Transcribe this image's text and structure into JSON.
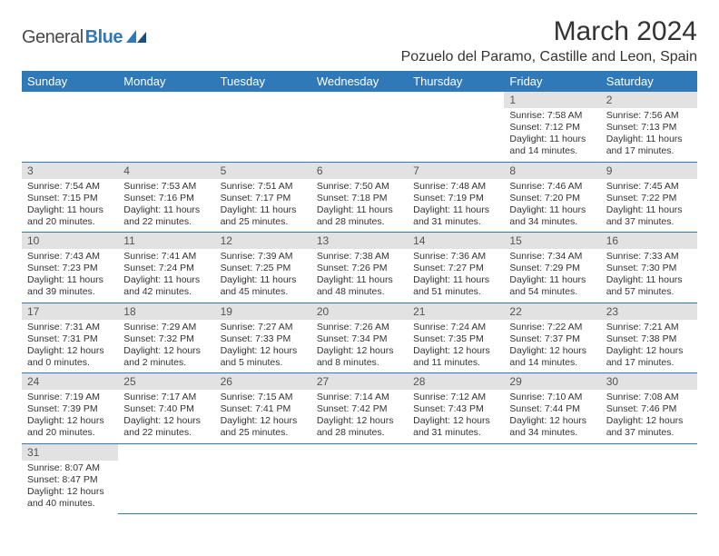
{
  "brand": {
    "part1": "General",
    "part2": "Blue"
  },
  "title": "March 2024",
  "location": "Pozuelo del Paramo, Castille and Leon, Spain",
  "colors": {
    "header_bg": "#2f79b9",
    "header_text": "#ffffff",
    "daynum_bg": "#e2e2e2",
    "row_border": "#2f79b9",
    "text": "#333333"
  },
  "weekdays": [
    "Sunday",
    "Monday",
    "Tuesday",
    "Wednesday",
    "Thursday",
    "Friday",
    "Saturday"
  ],
  "weeks": [
    [
      null,
      null,
      null,
      null,
      null,
      {
        "n": "1",
        "sr": "Sunrise: 7:58 AM",
        "ss": "Sunset: 7:12 PM",
        "d1": "Daylight: 11 hours",
        "d2": "and 14 minutes."
      },
      {
        "n": "2",
        "sr": "Sunrise: 7:56 AM",
        "ss": "Sunset: 7:13 PM",
        "d1": "Daylight: 11 hours",
        "d2": "and 17 minutes."
      }
    ],
    [
      {
        "n": "3",
        "sr": "Sunrise: 7:54 AM",
        "ss": "Sunset: 7:15 PM",
        "d1": "Daylight: 11 hours",
        "d2": "and 20 minutes."
      },
      {
        "n": "4",
        "sr": "Sunrise: 7:53 AM",
        "ss": "Sunset: 7:16 PM",
        "d1": "Daylight: 11 hours",
        "d2": "and 22 minutes."
      },
      {
        "n": "5",
        "sr": "Sunrise: 7:51 AM",
        "ss": "Sunset: 7:17 PM",
        "d1": "Daylight: 11 hours",
        "d2": "and 25 minutes."
      },
      {
        "n": "6",
        "sr": "Sunrise: 7:50 AM",
        "ss": "Sunset: 7:18 PM",
        "d1": "Daylight: 11 hours",
        "d2": "and 28 minutes."
      },
      {
        "n": "7",
        "sr": "Sunrise: 7:48 AM",
        "ss": "Sunset: 7:19 PM",
        "d1": "Daylight: 11 hours",
        "d2": "and 31 minutes."
      },
      {
        "n": "8",
        "sr": "Sunrise: 7:46 AM",
        "ss": "Sunset: 7:20 PM",
        "d1": "Daylight: 11 hours",
        "d2": "and 34 minutes."
      },
      {
        "n": "9",
        "sr": "Sunrise: 7:45 AM",
        "ss": "Sunset: 7:22 PM",
        "d1": "Daylight: 11 hours",
        "d2": "and 37 minutes."
      }
    ],
    [
      {
        "n": "10",
        "sr": "Sunrise: 7:43 AM",
        "ss": "Sunset: 7:23 PM",
        "d1": "Daylight: 11 hours",
        "d2": "and 39 minutes."
      },
      {
        "n": "11",
        "sr": "Sunrise: 7:41 AM",
        "ss": "Sunset: 7:24 PM",
        "d1": "Daylight: 11 hours",
        "d2": "and 42 minutes."
      },
      {
        "n": "12",
        "sr": "Sunrise: 7:39 AM",
        "ss": "Sunset: 7:25 PM",
        "d1": "Daylight: 11 hours",
        "d2": "and 45 minutes."
      },
      {
        "n": "13",
        "sr": "Sunrise: 7:38 AM",
        "ss": "Sunset: 7:26 PM",
        "d1": "Daylight: 11 hours",
        "d2": "and 48 minutes."
      },
      {
        "n": "14",
        "sr": "Sunrise: 7:36 AM",
        "ss": "Sunset: 7:27 PM",
        "d1": "Daylight: 11 hours",
        "d2": "and 51 minutes."
      },
      {
        "n": "15",
        "sr": "Sunrise: 7:34 AM",
        "ss": "Sunset: 7:29 PM",
        "d1": "Daylight: 11 hours",
        "d2": "and 54 minutes."
      },
      {
        "n": "16",
        "sr": "Sunrise: 7:33 AM",
        "ss": "Sunset: 7:30 PM",
        "d1": "Daylight: 11 hours",
        "d2": "and 57 minutes."
      }
    ],
    [
      {
        "n": "17",
        "sr": "Sunrise: 7:31 AM",
        "ss": "Sunset: 7:31 PM",
        "d1": "Daylight: 12 hours",
        "d2": "and 0 minutes."
      },
      {
        "n": "18",
        "sr": "Sunrise: 7:29 AM",
        "ss": "Sunset: 7:32 PM",
        "d1": "Daylight: 12 hours",
        "d2": "and 2 minutes."
      },
      {
        "n": "19",
        "sr": "Sunrise: 7:27 AM",
        "ss": "Sunset: 7:33 PM",
        "d1": "Daylight: 12 hours",
        "d2": "and 5 minutes."
      },
      {
        "n": "20",
        "sr": "Sunrise: 7:26 AM",
        "ss": "Sunset: 7:34 PM",
        "d1": "Daylight: 12 hours",
        "d2": "and 8 minutes."
      },
      {
        "n": "21",
        "sr": "Sunrise: 7:24 AM",
        "ss": "Sunset: 7:35 PM",
        "d1": "Daylight: 12 hours",
        "d2": "and 11 minutes."
      },
      {
        "n": "22",
        "sr": "Sunrise: 7:22 AM",
        "ss": "Sunset: 7:37 PM",
        "d1": "Daylight: 12 hours",
        "d2": "and 14 minutes."
      },
      {
        "n": "23",
        "sr": "Sunrise: 7:21 AM",
        "ss": "Sunset: 7:38 PM",
        "d1": "Daylight: 12 hours",
        "d2": "and 17 minutes."
      }
    ],
    [
      {
        "n": "24",
        "sr": "Sunrise: 7:19 AM",
        "ss": "Sunset: 7:39 PM",
        "d1": "Daylight: 12 hours",
        "d2": "and 20 minutes."
      },
      {
        "n": "25",
        "sr": "Sunrise: 7:17 AM",
        "ss": "Sunset: 7:40 PM",
        "d1": "Daylight: 12 hours",
        "d2": "and 22 minutes."
      },
      {
        "n": "26",
        "sr": "Sunrise: 7:15 AM",
        "ss": "Sunset: 7:41 PM",
        "d1": "Daylight: 12 hours",
        "d2": "and 25 minutes."
      },
      {
        "n": "27",
        "sr": "Sunrise: 7:14 AM",
        "ss": "Sunset: 7:42 PM",
        "d1": "Daylight: 12 hours",
        "d2": "and 28 minutes."
      },
      {
        "n": "28",
        "sr": "Sunrise: 7:12 AM",
        "ss": "Sunset: 7:43 PM",
        "d1": "Daylight: 12 hours",
        "d2": "and 31 minutes."
      },
      {
        "n": "29",
        "sr": "Sunrise: 7:10 AM",
        "ss": "Sunset: 7:44 PM",
        "d1": "Daylight: 12 hours",
        "d2": "and 34 minutes."
      },
      {
        "n": "30",
        "sr": "Sunrise: 7:08 AM",
        "ss": "Sunset: 7:46 PM",
        "d1": "Daylight: 12 hours",
        "d2": "and 37 minutes."
      }
    ],
    [
      {
        "n": "31",
        "sr": "Sunrise: 8:07 AM",
        "ss": "Sunset: 8:47 PM",
        "d1": "Daylight: 12 hours",
        "d2": "and 40 minutes."
      },
      null,
      null,
      null,
      null,
      null,
      null
    ]
  ]
}
